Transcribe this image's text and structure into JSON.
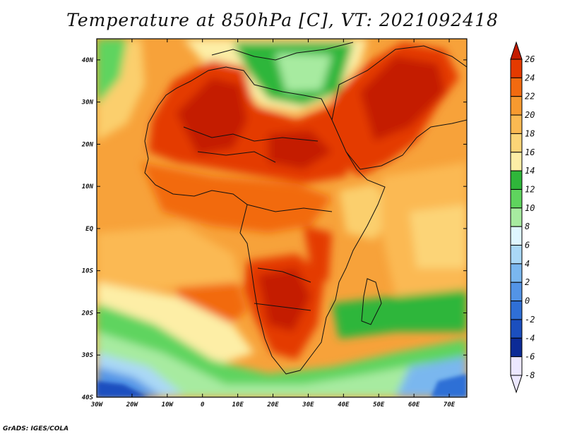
{
  "title": "Temperature at 850hPa [C], VT: 2021092418",
  "credit": "GrADS: IGES/COLA",
  "map": {
    "projection": "lat-lon",
    "lon_range": [
      -30,
      75
    ],
    "lat_range": [
      -40,
      45
    ],
    "lat_ticks": [
      {
        "value": 40,
        "label": "40N"
      },
      {
        "value": 30,
        "label": "30N"
      },
      {
        "value": 20,
        "label": "20N"
      },
      {
        "value": 10,
        "label": "10N"
      },
      {
        "value": 0,
        "label": "EQ"
      },
      {
        "value": -10,
        "label": "10S"
      },
      {
        "value": -20,
        "label": "20S"
      },
      {
        "value": -30,
        "label": "30S"
      },
      {
        "value": -40,
        "label": "40S"
      }
    ],
    "lon_ticks": [
      {
        "value": -30,
        "label": "30W"
      },
      {
        "value": -20,
        "label": "20W"
      },
      {
        "value": -10,
        "label": "10W"
      },
      {
        "value": 0,
        "label": "0"
      },
      {
        "value": 10,
        "label": "10E"
      },
      {
        "value": 20,
        "label": "20E"
      },
      {
        "value": 30,
        "label": "30E"
      },
      {
        "value": 40,
        "label": "40E"
      },
      {
        "value": 50,
        "label": "50E"
      },
      {
        "value": 60,
        "label": "60E"
      },
      {
        "value": 70,
        "label": "70E"
      }
    ]
  },
  "colorbar": {
    "levels": [
      26,
      24,
      22,
      20,
      18,
      16,
      14,
      12,
      10,
      8,
      6,
      4,
      2,
      0,
      -2,
      -4,
      -6,
      -8
    ],
    "labels": [
      "26",
      "24",
      "22",
      "20",
      "18",
      "16",
      "14",
      "12",
      "10",
      "8",
      "6",
      "4",
      "2",
      "0",
      "-2",
      "-4",
      "-6",
      "-8"
    ],
    "colors": [
      "#c41c00",
      "#e43a00",
      "#f26a10",
      "#f79a30",
      "#fbb952",
      "#fcd477",
      "#fdeea6",
      "#2fb63a",
      "#5fd45e",
      "#a7eba0",
      "#dff6ff",
      "#aad8f6",
      "#7ab7ef",
      "#5394e6",
      "#2f6fd6",
      "#1b4fbf",
      "#0c2b96",
      "#ece8ff"
    ]
  }
}
